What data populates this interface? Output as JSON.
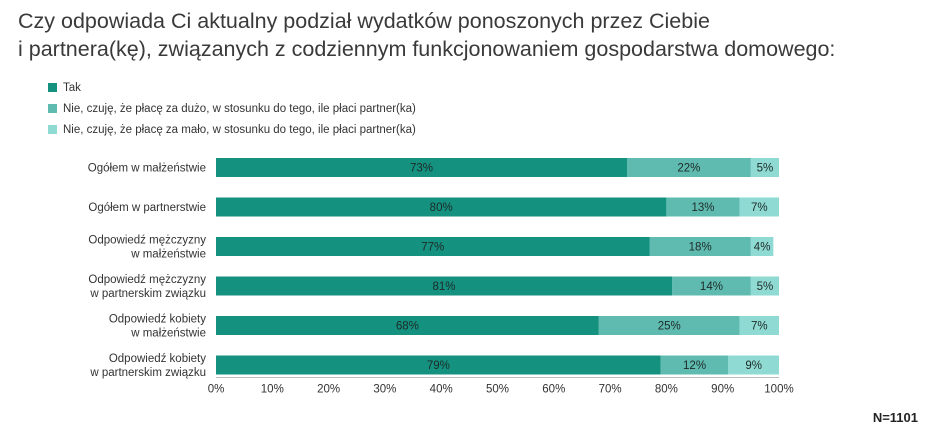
{
  "title_lines": [
    "Czy odpowiada Ci aktualny podział wydatków ponoszonych przez Ciebie",
    "i partnera(kę), związanych z codziennym funkcjonowaniem gospodarstwa domowego:"
  ],
  "n_label": "N=1101",
  "colors": [
    "#14917f",
    "#5fbbb0",
    "#8fdbd3"
  ],
  "chart_data": {
    "type": "bar",
    "orientation": "horizontal",
    "stacked": true,
    "title": "Czy odpowiada Ci aktualny podział wydatków ponoszonych przez Ciebie i partnera(kę), związanych z codziennym funkcjonowaniem gospodarstwa domowego:",
    "categories": [
      [
        "Ogółem  w małżeństwie"
      ],
      [
        "Ogółem w partnerstwie"
      ],
      [
        "Odpowiedź mężczyzny",
        "w małżeństwie"
      ],
      [
        "Odpowiedź mężczyzny",
        "w partnerskim związku"
      ],
      [
        "Odpowiedź kobiety",
        "w małżeństwie"
      ],
      [
        "Odpowiedź kobiety",
        "w partnerskim związku"
      ]
    ],
    "series": [
      {
        "name": "Tak",
        "values": [
          73,
          80,
          77,
          81,
          68,
          79
        ]
      },
      {
        "name": "Nie, czuję, że płacę za dużo, w stosunku do tego, ile płaci partner(ka)",
        "values": [
          22,
          13,
          18,
          14,
          25,
          12
        ]
      },
      {
        "name": "Nie, czuję, że płacę za mało, w stosunku do tego, ile płaci partner(ka)",
        "values": [
          5,
          7,
          4,
          5,
          7,
          9
        ]
      }
    ],
    "data_labels": [
      [
        "73%",
        "22%",
        "5%"
      ],
      [
        "80%",
        "13%",
        "7%"
      ],
      [
        "77%",
        "18%",
        "4%"
      ],
      [
        "81%",
        "14%",
        "5%"
      ],
      [
        "68%",
        "25%",
        "7%"
      ],
      [
        "79%",
        "12%",
        "9%"
      ]
    ],
    "xticks": [
      "0%",
      "10%",
      "20%",
      "30%",
      "40%",
      "50%",
      "60%",
      "70%",
      "80%",
      "90%",
      "100%"
    ],
    "xlim": [
      0,
      100
    ],
    "grid": false,
    "legend_position": "top-left"
  }
}
